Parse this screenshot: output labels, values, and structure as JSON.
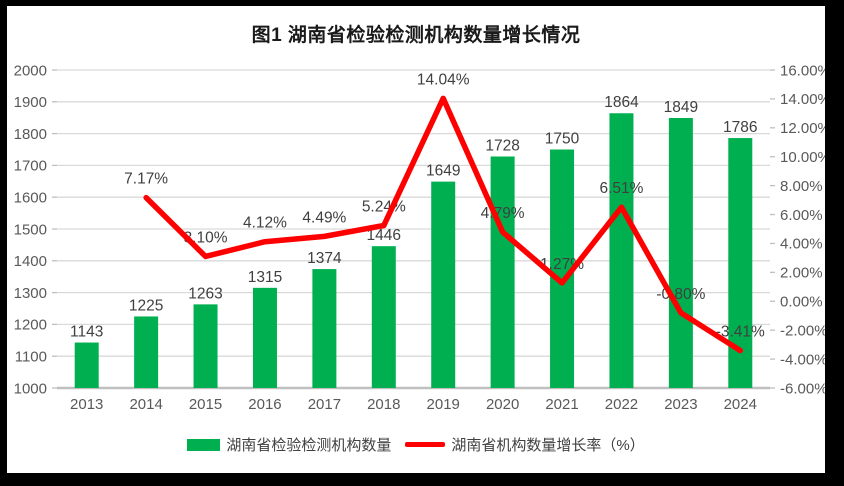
{
  "title": "图1 湖南省检验检测机构数量增长情况",
  "legend": [
    {
      "label": "湖南省检验检测机构数量",
      "type": "bar",
      "color": "#00B050"
    },
    {
      "label": "湖南省机构数量增长率（%）",
      "type": "line",
      "color": "#FF0000"
    }
  ],
  "chart_data": {
    "type": "bar",
    "title": "图1 湖南省检验检测机构数量增长情况",
    "categories": [
      "2013",
      "2014",
      "2015",
      "2016",
      "2017",
      "2018",
      "2019",
      "2020",
      "2021",
      "2022",
      "2023",
      "2024"
    ],
    "series": [
      {
        "name": "湖南省检验检测机构数量",
        "type": "bar",
        "axis": "left",
        "color": "#00B050",
        "values": [
          1143,
          1225,
          1263,
          1315,
          1374,
          1446,
          1649,
          1728,
          1750,
          1864,
          1849,
          1786
        ],
        "labels": [
          "1143",
          "1225",
          "1263",
          "1315",
          "1374",
          "1446",
          "1649",
          "1728",
          "1750",
          "1864",
          "1849",
          "1786"
        ]
      },
      {
        "name": "湖南省机构数量增长率（%）",
        "type": "line",
        "axis": "right",
        "color": "#FF0000",
        "values": [
          null,
          7.17,
          3.1,
          4.12,
          4.49,
          5.24,
          14.04,
          4.79,
          1.27,
          6.51,
          -0.8,
          -3.41
        ],
        "labels": [
          "",
          "7.17%",
          "3.10%",
          "4.12%",
          "4.49%",
          "5.24%",
          "14.04%",
          "4.79%",
          "1.27%",
          "6.51%",
          "-0.80%",
          "-3.41%"
        ]
      }
    ],
    "left_axis": {
      "min": 1000,
      "max": 2000,
      "step": 100,
      "ticks": [
        "2000",
        "1900",
        "1800",
        "1700",
        "1600",
        "1500",
        "1400",
        "1300",
        "1200",
        "1100",
        "1000"
      ]
    },
    "right_axis": {
      "min": -6,
      "max": 16,
      "step": 2,
      "ticks": [
        "16.00%",
        "14.00%",
        "12.00%",
        "10.00%",
        "8.00%",
        "6.00%",
        "4.00%",
        "2.00%",
        "0.00%",
        "-2.00%",
        "-4.00%",
        "-6.00%"
      ]
    },
    "grid": true,
    "legend_position": "bottom",
    "colors": {
      "bar": "#00B050",
      "line": "#FF0000",
      "gridline": "#D9D9D9",
      "baseline": "#BFBFBF",
      "tick_label": "#595959",
      "data_label": "#404040"
    }
  }
}
